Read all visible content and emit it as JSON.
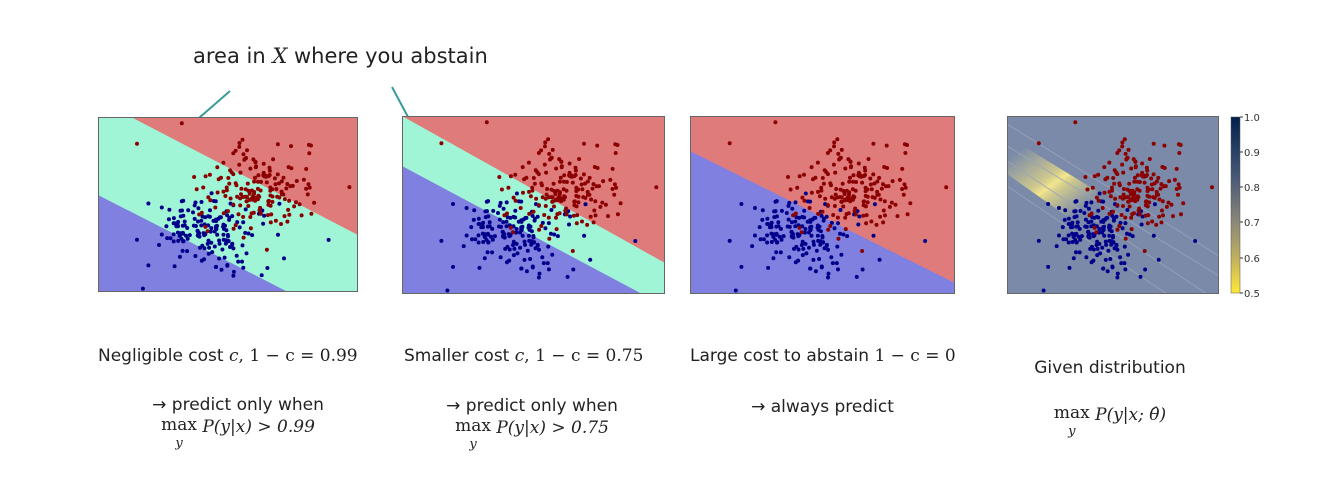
{
  "annotation": {
    "prefix": "area in ",
    "variable": "X",
    "suffix": " where you abstain"
  },
  "panels": [
    {
      "title_text": "Negligible cost ",
      "title_var": "c",
      "title_math": ",  1 − c = 0.99",
      "line1": "→ predict only when",
      "expr_op": "max",
      "expr_sub": "y",
      "expr_body": "P(y|x) > 0.99"
    },
    {
      "title_text": "Smaller cost ",
      "title_var": "c",
      "title_math": ",  1 − c = 0.75",
      "line1": "→ predict only when",
      "expr_op": "max",
      "expr_sub": "y",
      "expr_body": "P(y|x) > 0.75"
    },
    {
      "title_text": "Large cost to abstain ",
      "title_var": "",
      "title_math": "1 − c = 0",
      "line1": "→ always predict",
      "expr_op": "",
      "expr_sub": "",
      "expr_body": ""
    },
    {
      "title_text": "Given distribution",
      "title_var": "",
      "title_math": "",
      "line1": "",
      "expr_op": "max",
      "expr_sub": "y",
      "expr_body": "P(y|x; θ̂)"
    }
  ],
  "colorbar": {
    "ticks": [
      "1.0",
      "0.9",
      "0.8",
      "0.7",
      "0.6",
      "0.5"
    ]
  },
  "colors": {
    "red_region": "#e07b7b",
    "blue_region": "#8080e0",
    "abstain_region": "#9ff5d5",
    "red_points": "#8b0000",
    "blue_points": "#00008b",
    "arrow": "#3a9a9a",
    "prob_background": "#7a8aa8",
    "prob_band": "#ffe680"
  }
}
